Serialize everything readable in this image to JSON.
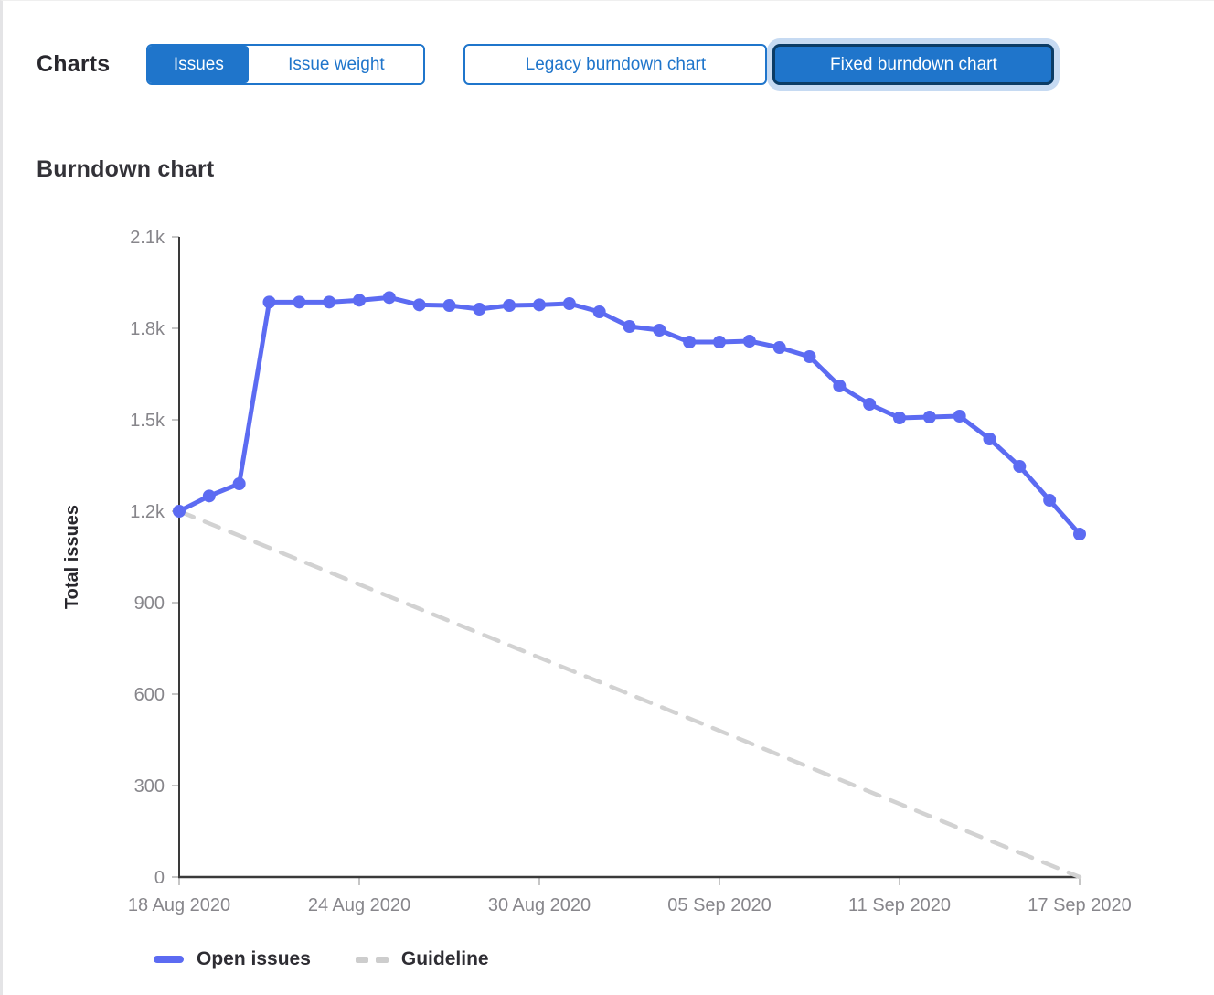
{
  "header": {
    "charts_label": "Charts",
    "toggle": {
      "issues_label": "Issues",
      "issue_weight_label": "Issue weight",
      "selected": "Issues"
    },
    "variant_buttons": {
      "legacy_label": "Legacy burndown chart",
      "fixed_label": "Fixed burndown chart",
      "selected": "Fixed burndown chart"
    }
  },
  "section_title": "Burndown chart",
  "colors": {
    "accent_blue": "#1f75cb",
    "line_blue": "#5c6bf2",
    "guideline_gray": "#d2d2d2",
    "axis": "#3a3a3a",
    "tick": "#c6c6c6",
    "tick_label": "#87868b",
    "text_dark": "#28272d",
    "focus_halo": "#c6daf2",
    "focus_border": "#0b3c66"
  },
  "chart_data": {
    "type": "line",
    "title": "Burndown chart",
    "xlabel": "",
    "ylabel": "Total issues",
    "ylim": [
      0,
      2100
    ],
    "grid": false,
    "legend_position": "bottom",
    "y_ticks": [
      {
        "value": 0,
        "label": "0"
      },
      {
        "value": 300,
        "label": "300"
      },
      {
        "value": 600,
        "label": "600"
      },
      {
        "value": 900,
        "label": "900"
      },
      {
        "value": 1200,
        "label": "1.2k"
      },
      {
        "value": 1500,
        "label": "1.5k"
      },
      {
        "value": 1800,
        "label": "1.8k"
      },
      {
        "value": 2100,
        "label": "2.1k"
      }
    ],
    "x": [
      "18 Aug 2020",
      "19 Aug 2020",
      "20 Aug 2020",
      "21 Aug 2020",
      "22 Aug 2020",
      "23 Aug 2020",
      "24 Aug 2020",
      "25 Aug 2020",
      "26 Aug 2020",
      "27 Aug 2020",
      "28 Aug 2020",
      "29 Aug 2020",
      "30 Aug 2020",
      "31 Aug 2020",
      "01 Sep 2020",
      "02 Sep 2020",
      "03 Sep 2020",
      "04 Sep 2020",
      "05 Sep 2020",
      "06 Sep 2020",
      "07 Sep 2020",
      "08 Sep 2020",
      "09 Sep 2020",
      "10 Sep 2020",
      "11 Sep 2020",
      "12 Sep 2020",
      "13 Sep 2020",
      "14 Sep 2020",
      "15 Sep 2020",
      "16 Sep 2020",
      "17 Sep 2020"
    ],
    "x_tick_indices": [
      0,
      6,
      12,
      18,
      24,
      30
    ],
    "series": [
      {
        "name": "Open issues",
        "type": "line",
        "color": "#5c6bf2",
        "values": [
          1200,
          1250,
          1290,
          1886,
          1886,
          1886,
          1892,
          1901,
          1877,
          1875,
          1863,
          1875,
          1877,
          1881,
          1854,
          1806,
          1794,
          1755,
          1755,
          1758,
          1737,
          1707,
          1611,
          1551,
          1506,
          1509,
          1512,
          1437,
          1347,
          1236,
          1125
        ]
      },
      {
        "name": "Guideline",
        "type": "dashed-line",
        "color": "#d2d2d2",
        "points": [
          {
            "x": "18 Aug 2020",
            "y": 1200
          },
          {
            "x": "17 Sep 2020",
            "y": 0
          }
        ]
      }
    ]
  }
}
